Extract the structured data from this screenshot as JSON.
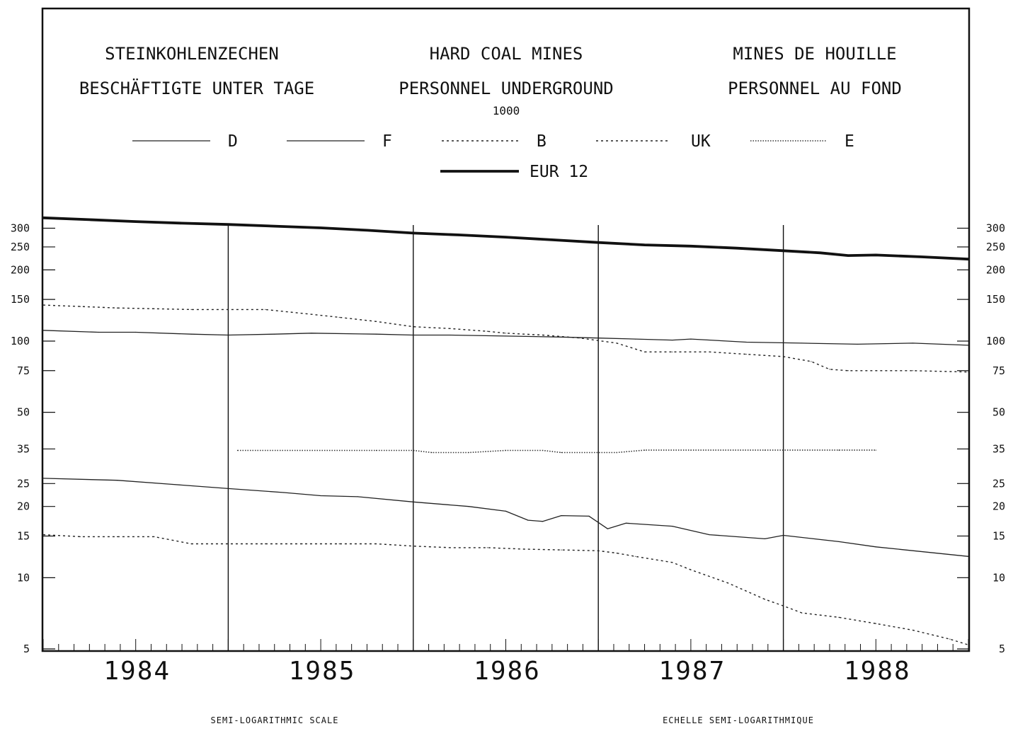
{
  "titles": {
    "de_line1": "STEINKOHLENZECHEN",
    "de_line2": "BESCHÄFTIGTE UNTER TAGE",
    "en_line1": "HARD COAL MINES",
    "en_line2": "PERSONNEL UNDERGROUND",
    "fr_line1": "MINES DE HOUILLE",
    "fr_line2": "PERSONNEL AU FOND",
    "unit": "1000"
  },
  "footer": {
    "left": "SEMI-LOGARITHMIC SCALE",
    "right": "ECHELLE SEMI-LOGARITHMIQUE"
  },
  "chart_data": {
    "type": "line",
    "y_scale": "log",
    "ylim": [
      5,
      360
    ],
    "xlim": [
      1983.5,
      1988.5
    ],
    "y_ticks": [
      300,
      250,
      200,
      150,
      100,
      75,
      50,
      35,
      25,
      20,
      15,
      10,
      5
    ],
    "year_labels": [
      "1984",
      "1985",
      "1986",
      "1987",
      "1988"
    ],
    "year_separators": [
      1984.5,
      1985.5,
      1986.5,
      1987.5
    ],
    "grid": false,
    "legend_position": "top",
    "series": [
      {
        "name": "D",
        "style": "thin",
        "x": [
          1983.5,
          1983.8,
          1984.0,
          1984.3,
          1984.5,
          1984.75,
          1984.95,
          1985.3,
          1985.5,
          1985.7,
          1986.0,
          1986.3,
          1986.5,
          1986.7,
          1986.9,
          1987.0,
          1987.3,
          1987.6,
          1987.9,
          1988.2,
          1988.5
        ],
        "y": [
          111,
          109,
          109,
          107,
          106,
          107,
          108,
          107,
          106,
          106,
          105,
          104,
          103,
          102,
          101,
          102,
          99,
          98,
          97,
          98,
          96
        ]
      },
      {
        "name": "F",
        "style": "thin",
        "x": [
          1983.5,
          1983.9,
          1984.2,
          1984.5,
          1984.8,
          1985.0,
          1985.2,
          1985.5,
          1985.8,
          1986.0,
          1986.12,
          1986.2,
          1986.3,
          1986.45,
          1986.55,
          1986.65,
          1986.9,
          1987.1,
          1987.4,
          1987.5,
          1987.8,
          1988.0,
          1988.5
        ],
        "y": [
          26.3,
          25.8,
          24.8,
          23.8,
          22.9,
          22.2,
          22.0,
          20.9,
          20.0,
          19.1,
          17.5,
          17.3,
          18.3,
          18.2,
          16.1,
          17.0,
          16.5,
          15.2,
          14.6,
          15.1,
          14.2,
          13.5,
          12.3
        ]
      },
      {
        "name": "B",
        "style": "dotted-cross",
        "x": [
          1983.5,
          1983.7,
          1983.9,
          1984.1,
          1984.3,
          1984.5,
          1984.7,
          1984.9,
          1985.1,
          1985.3,
          1985.5,
          1985.7,
          1985.9,
          1986.1,
          1986.3,
          1986.5,
          1986.6,
          1986.7,
          1986.9,
          1987.0,
          1987.2,
          1987.4,
          1987.5,
          1987.6,
          1987.8,
          1988.0,
          1988.2,
          1988.4,
          1988.5
        ],
        "y": [
          15.2,
          14.9,
          14.9,
          14.9,
          13.9,
          13.9,
          13.9,
          13.9,
          13.9,
          13.9,
          13.6,
          13.4,
          13.4,
          13.2,
          13.1,
          13.0,
          12.7,
          12.3,
          11.6,
          10.8,
          9.5,
          8.1,
          7.6,
          7.1,
          6.8,
          6.4,
          6.0,
          5.5,
          5.2
        ]
      },
      {
        "name": "UK",
        "style": "dotted-cross",
        "x": [
          1983.5,
          1983.7,
          1983.9,
          1984.1,
          1984.3,
          1984.5,
          1984.7,
          1984.9,
          1985.1,
          1985.3,
          1985.5,
          1985.7,
          1985.9,
          1986.0,
          1986.2,
          1986.4,
          1986.6,
          1986.75,
          1986.9,
          1987.1,
          1987.3,
          1987.5,
          1987.65,
          1987.75,
          1987.85,
          1988.0,
          1988.2,
          1988.5
        ],
        "y": [
          142,
          140,
          138,
          137,
          136,
          136,
          136,
          131,
          126,
          121,
          115,
          113,
          110,
          108,
          106,
          103,
          98,
          90,
          90,
          90,
          88,
          86,
          82,
          76,
          75,
          75,
          75,
          74
        ]
      },
      {
        "name": "E",
        "style": "dense-dotted",
        "x": [
          1984.55,
          1984.9,
          1985.3,
          1985.5,
          1985.6,
          1985.8,
          1986.0,
          1986.2,
          1986.3,
          1986.6,
          1986.75,
          1987.0,
          1987.4,
          1987.8,
          1988.0
        ],
        "y": [
          34.5,
          34.5,
          34.5,
          34.5,
          33.8,
          33.8,
          34.5,
          34.5,
          33.8,
          33.8,
          34.6,
          34.6,
          34.6,
          34.6,
          34.6
        ]
      },
      {
        "name": "EUR 12",
        "style": "thick",
        "x": [
          1983.5,
          1983.75,
          1984.0,
          1984.25,
          1984.5,
          1984.75,
          1985.0,
          1985.25,
          1985.5,
          1985.75,
          1986.0,
          1986.25,
          1986.5,
          1986.75,
          1987.0,
          1987.25,
          1987.5,
          1987.7,
          1987.85,
          1988.0,
          1988.25,
          1988.5
        ],
        "y": [
          332,
          326,
          320,
          315,
          311,
          306,
          301,
          294,
          286,
          281,
          275,
          268,
          261,
          255,
          252,
          247,
          241,
          236,
          230,
          231,
          227,
          222
        ]
      }
    ]
  }
}
